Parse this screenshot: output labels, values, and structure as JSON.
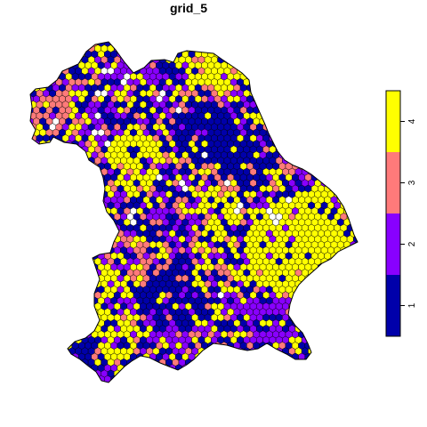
{
  "title": "grid_5",
  "colors": {
    "class_1": "#0000AA",
    "class_2": "#8800FF",
    "class_3": "#FF7A7A",
    "class_4": "#FFFF00",
    "missing": "#FFFFFF",
    "cell_border": "#000000"
  },
  "legend": {
    "breaks": [
      0.5,
      1.5,
      2.5,
      3.5,
      4.5
    ],
    "colors": [
      "#0000AA",
      "#8800FF",
      "#FF7A7A",
      "#FFFF00"
    ],
    "ticks": [
      "1",
      "2",
      "3",
      "4"
    ]
  },
  "chart_data": {
    "type": "heatmap",
    "title": "grid_5",
    "value_range": [
      0.5,
      4.5
    ],
    "classes": [
      {
        "value": 1,
        "color": "#0000AA",
        "share": 0.32
      },
      {
        "value": 2,
        "color": "#8800FF",
        "share": 0.25
      },
      {
        "value": 3,
        "color": "#FF7A7A",
        "share": 0.14
      },
      {
        "value": 4,
        "color": "#FFFF00",
        "share": 0.25
      },
      {
        "value": null,
        "color": "#FFFFFF",
        "share": 0.04
      }
    ],
    "legend_position": "right"
  }
}
